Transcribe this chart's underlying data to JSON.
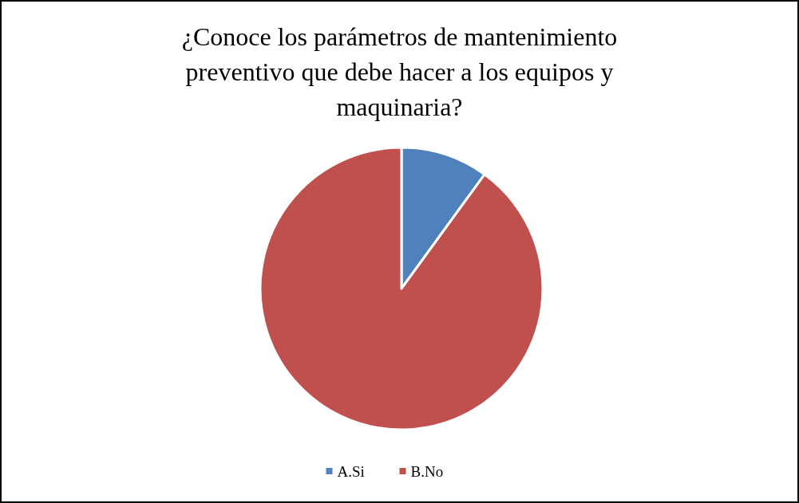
{
  "chart_data": {
    "type": "pie",
    "title": "¿Conoce los parámetros de mantenimiento preventivo que debe hacer a los equipos y maquinaria?",
    "categories": [
      "A.Si",
      "B.No"
    ],
    "values": [
      10,
      90
    ],
    "colors": [
      "#4f81bd",
      "#c0504d"
    ],
    "legend": "bottom"
  }
}
